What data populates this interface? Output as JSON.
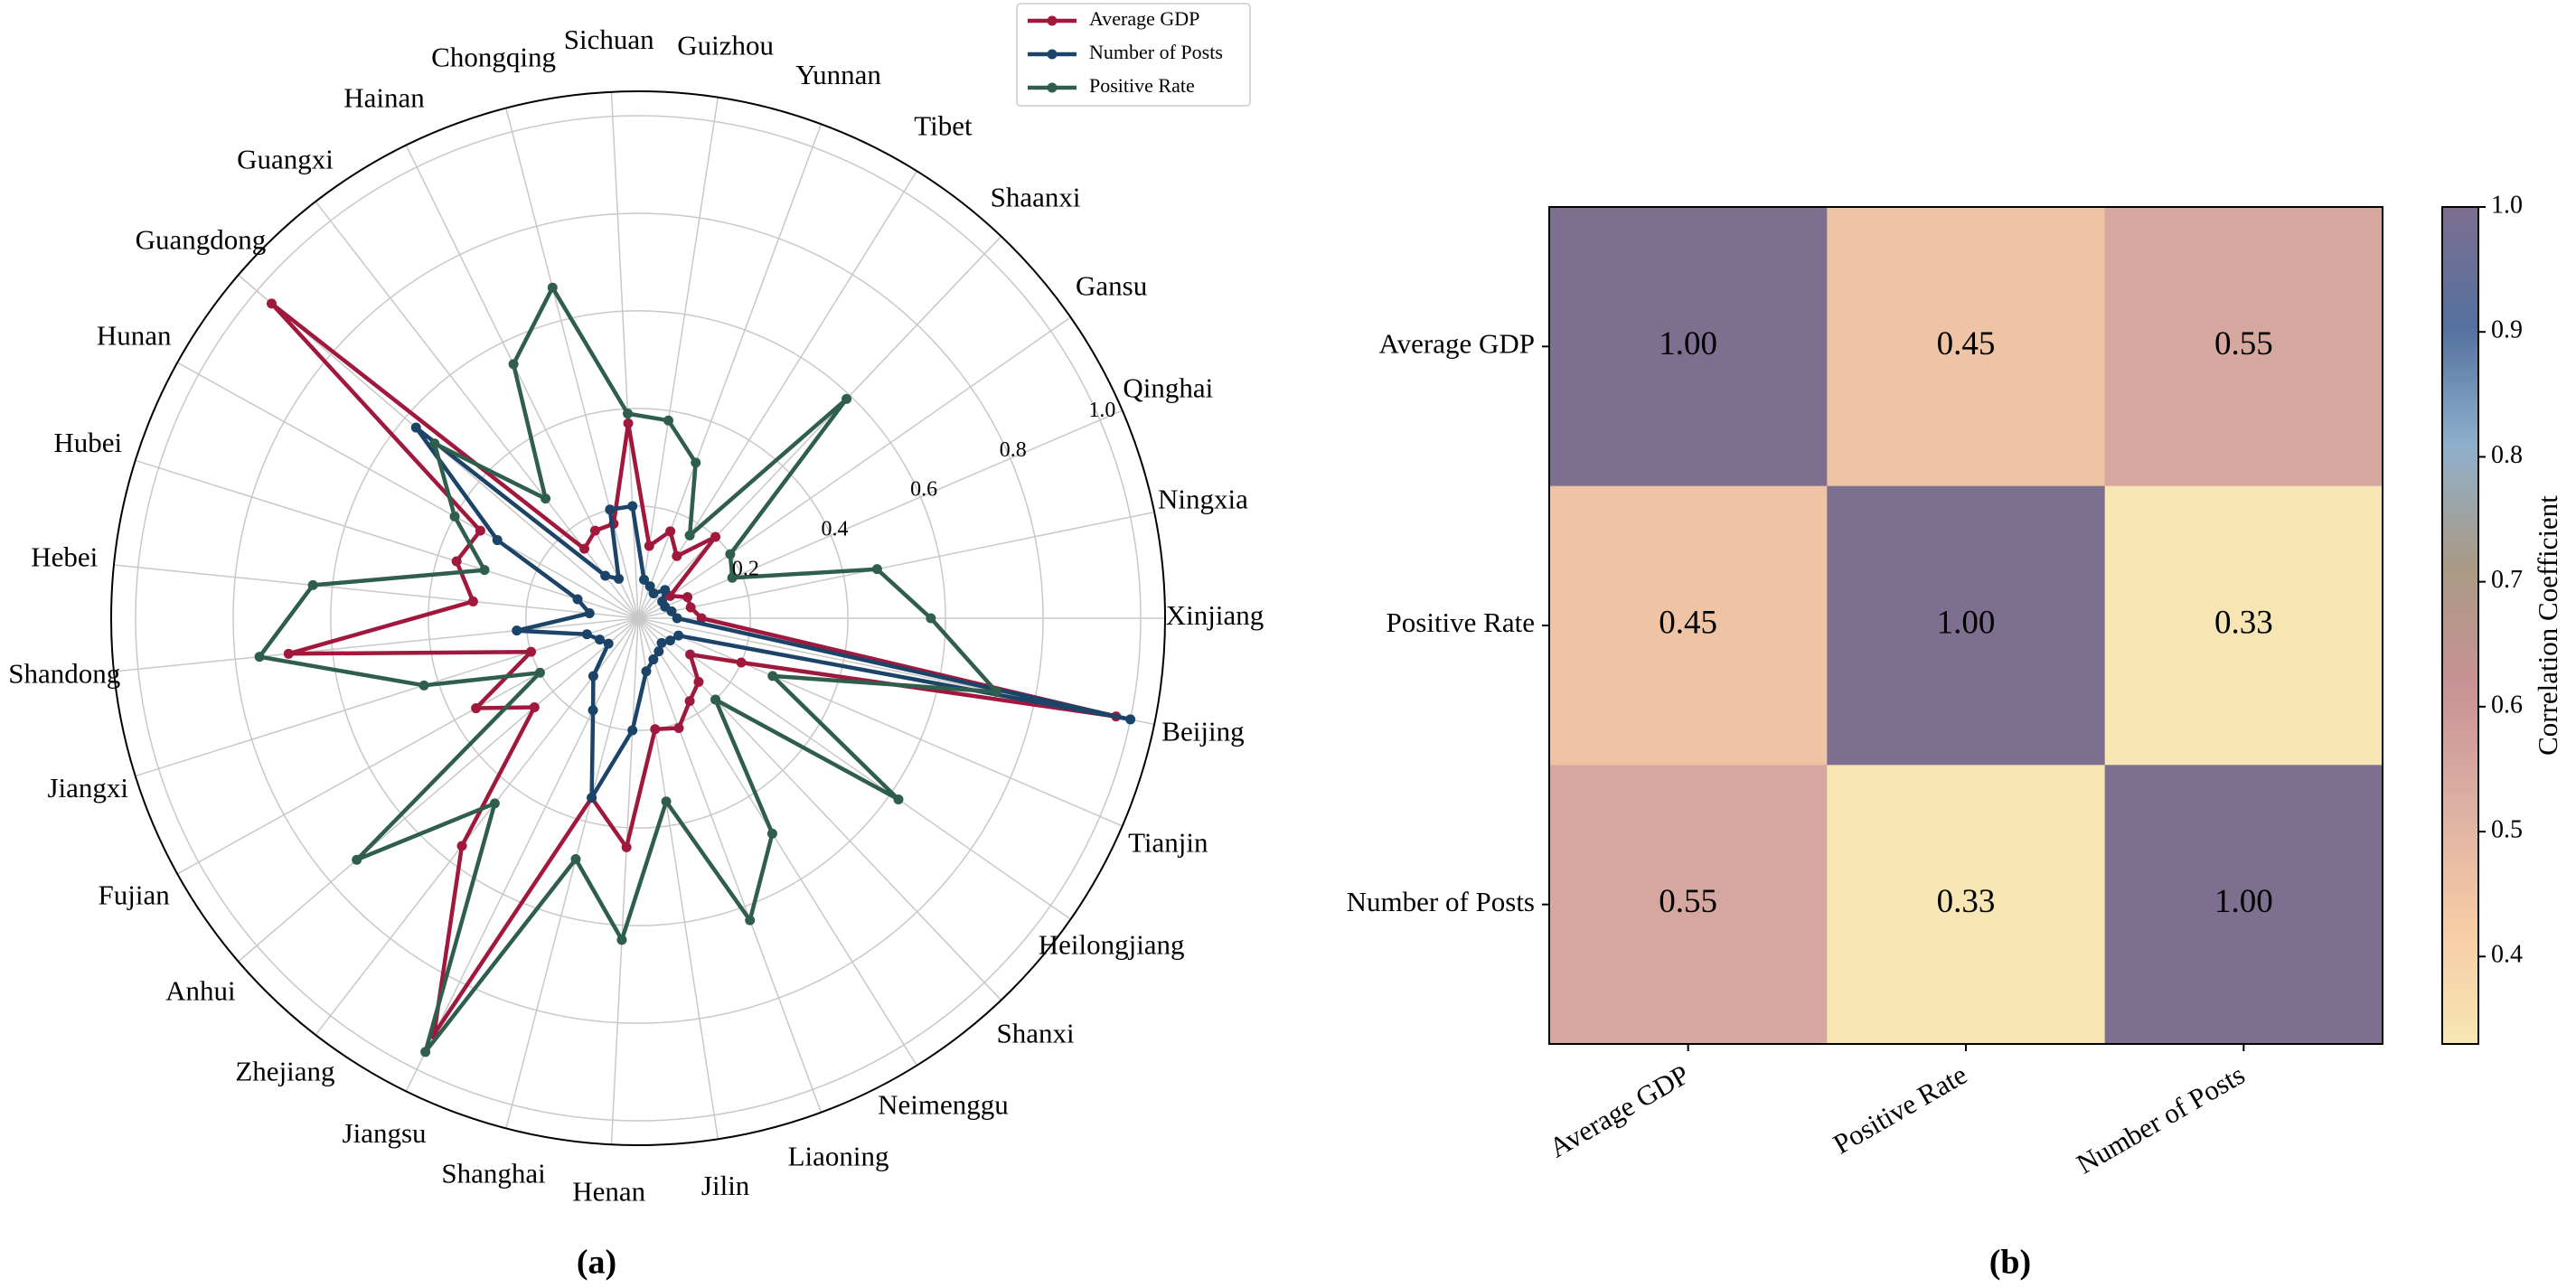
{
  "chart_data": [
    {
      "type": "radar",
      "caption": "(a)",
      "categories": [
        "Xinjiang",
        "Ningxia",
        "Qinghai",
        "Gansu",
        "Shaanxi",
        "Tibet",
        "Yunnan",
        "Guizhou",
        "Sichuan",
        "Chongqing",
        "Hainan",
        "Guangxi",
        "Guangdong",
        "Hunan",
        "Hubei",
        "Hebei",
        "Shandong",
        "Jiangxi",
        "Fujian",
        "Anhui",
        "Zhejiang",
        "Jiangsu",
        "Shanghai",
        "Henan",
        "Jilin",
        "Liaoning",
        "Neimenggu",
        "Shanxi",
        "Heilongjiang",
        "Tianjin",
        "Beijing"
      ],
      "series": [
        {
          "name": "Average GDP",
          "color": "#a0193c",
          "values": [
            0.1,
            0.08,
            0.08,
            0.05,
            0.2,
            0.12,
            0.16,
            0.12,
            0.37,
            0.17,
            0.17,
            0.15,
            0.96,
            0.34,
            0.36,
            0.31,
            0.69,
            0.2,
            0.35,
            0.25,
            0.56,
            0.92,
            0.35,
            0.44,
            0.2,
            0.21,
            0.17,
            0.15,
            0.1,
            0.2,
            0.97
          ]
        },
        {
          "name": "Number of Posts",
          "color": "#1b4468",
          "values": [
            0.05,
            0.04,
            0.03,
            0.03,
            0.05,
            0.03,
            0.04,
            0.05,
            0.2,
            0.2,
            0.06,
            0.08,
            0.57,
            0.3,
            0.1,
            0.07,
            0.22,
            0.08,
            0.06,
            0.05,
            0.12,
            0.18,
            0.35,
            0.2,
            0.08,
            0.06,
            0.05,
            0.04,
            0.05,
            0.06,
            1.0
          ]
        },
        {
          "name": "Positive Rate",
          "color": "#2f5e4c",
          "values": [
            0.57,
            0.47,
            0.18,
            0.2,
            0.59,
            0.17,
            0.31,
            0.38,
            0.39,
            0.67,
            0.55,
            0.28,
            0.52,
            0.4,
            0.3,
            0.64,
            0.75,
            0.43,
            0.2,
            0.73,
            0.45,
            0.96,
            0.48,
            0.63,
            0.35,
            0.63,
            0.49,
            0.2,
            0.62,
            0.27,
            0.72
          ]
        }
      ],
      "rlim": [
        -0.03,
        1.05
      ],
      "rticks": [
        0.2,
        0.4,
        0.6,
        0.8,
        {
          "value": 1,
          "label": "1.0"
        }
      ],
      "grid": true,
      "legend": "upper right"
    },
    {
      "type": "heatmap",
      "caption": "(b)",
      "x_categories": [
        "Average GDP",
        "Positive Rate",
        "Number of Posts"
      ],
      "y_categories": [
        "Average GDP",
        "Positive Rate",
        "Number of Posts"
      ],
      "values": [
        [
          1.0,
          0.45,
          0.55
        ],
        [
          0.45,
          1.0,
          0.33
        ],
        [
          0.55,
          0.33,
          1.0
        ]
      ],
      "value_labels": [
        [
          "1.00",
          "0.45",
          "0.55"
        ],
        [
          "0.45",
          "1.00",
          "0.33"
        ],
        [
          "0.55",
          "0.33",
          "1.00"
        ]
      ],
      "clim": [
        0.33,
        1.0
      ],
      "cticks": [
        0.4,
        0.5,
        0.6,
        0.7,
        0.8,
        0.9,
        {
          "value": 1,
          "label": "1.0"
        }
      ],
      "colorbar_label": "Correlation Coefficient",
      "colormap": [
        "#f7e6b3",
        "#f6cba5",
        "#dcb0a3",
        "#c99294",
        "#a99a85",
        "#8fb0cc",
        "#55709f",
        "#7d6f90"
      ]
    }
  ]
}
